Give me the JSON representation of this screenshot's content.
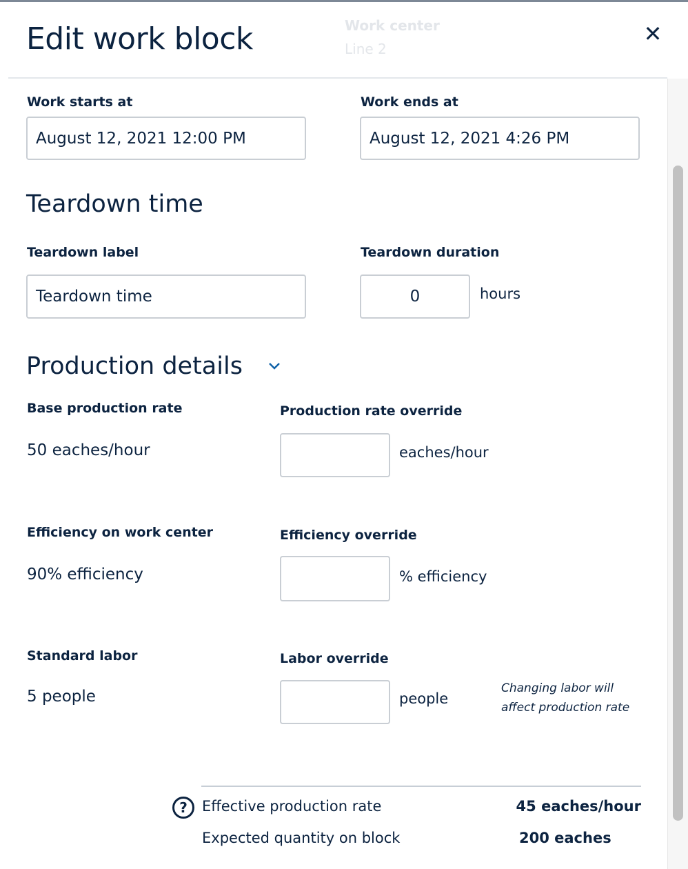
{
  "background": {
    "label": "Work center",
    "value": "Line 2"
  },
  "modal": {
    "title": "Edit work block",
    "close_icon": "close-icon"
  },
  "work": {
    "starts_label": "Work starts at",
    "starts_value": "August 12, 2021 12:00 PM",
    "ends_label": "Work ends at",
    "ends_value": "August 12, 2021 4:26 PM"
  },
  "teardown": {
    "heading": "Teardown time",
    "label_label": "Teardown label",
    "label_value": "Teardown time",
    "duration_label": "Teardown duration",
    "duration_value": "0",
    "duration_unit": "hours"
  },
  "production": {
    "heading": "Production details",
    "chevron_icon": "chevron-down-icon",
    "base_rate_label": "Base production rate",
    "base_rate_value": "50 eaches/hour",
    "rate_override_label": "Production rate override",
    "rate_override_value": "",
    "rate_override_unit": "eaches/hour",
    "efficiency_label": "Efficiency on work center",
    "efficiency_value": "90% efficiency",
    "efficiency_override_label": "Efficiency override",
    "efficiency_override_value": "",
    "efficiency_override_unit": "% efficiency",
    "labor_label": "Standard labor",
    "labor_value": "5 people",
    "labor_override_label": "Labor override",
    "labor_override_value": "",
    "labor_override_unit": "people",
    "labor_note_1": "Changing labor will",
    "labor_note_2": "affect production rate"
  },
  "summary": {
    "help_icon": "question-circle-icon",
    "help_glyph": "?",
    "effective_label": "Effective production rate",
    "effective_value": "45 eaches/hour",
    "expected_label": "Expected quantity on block",
    "expected_value": "200 eaches"
  }
}
